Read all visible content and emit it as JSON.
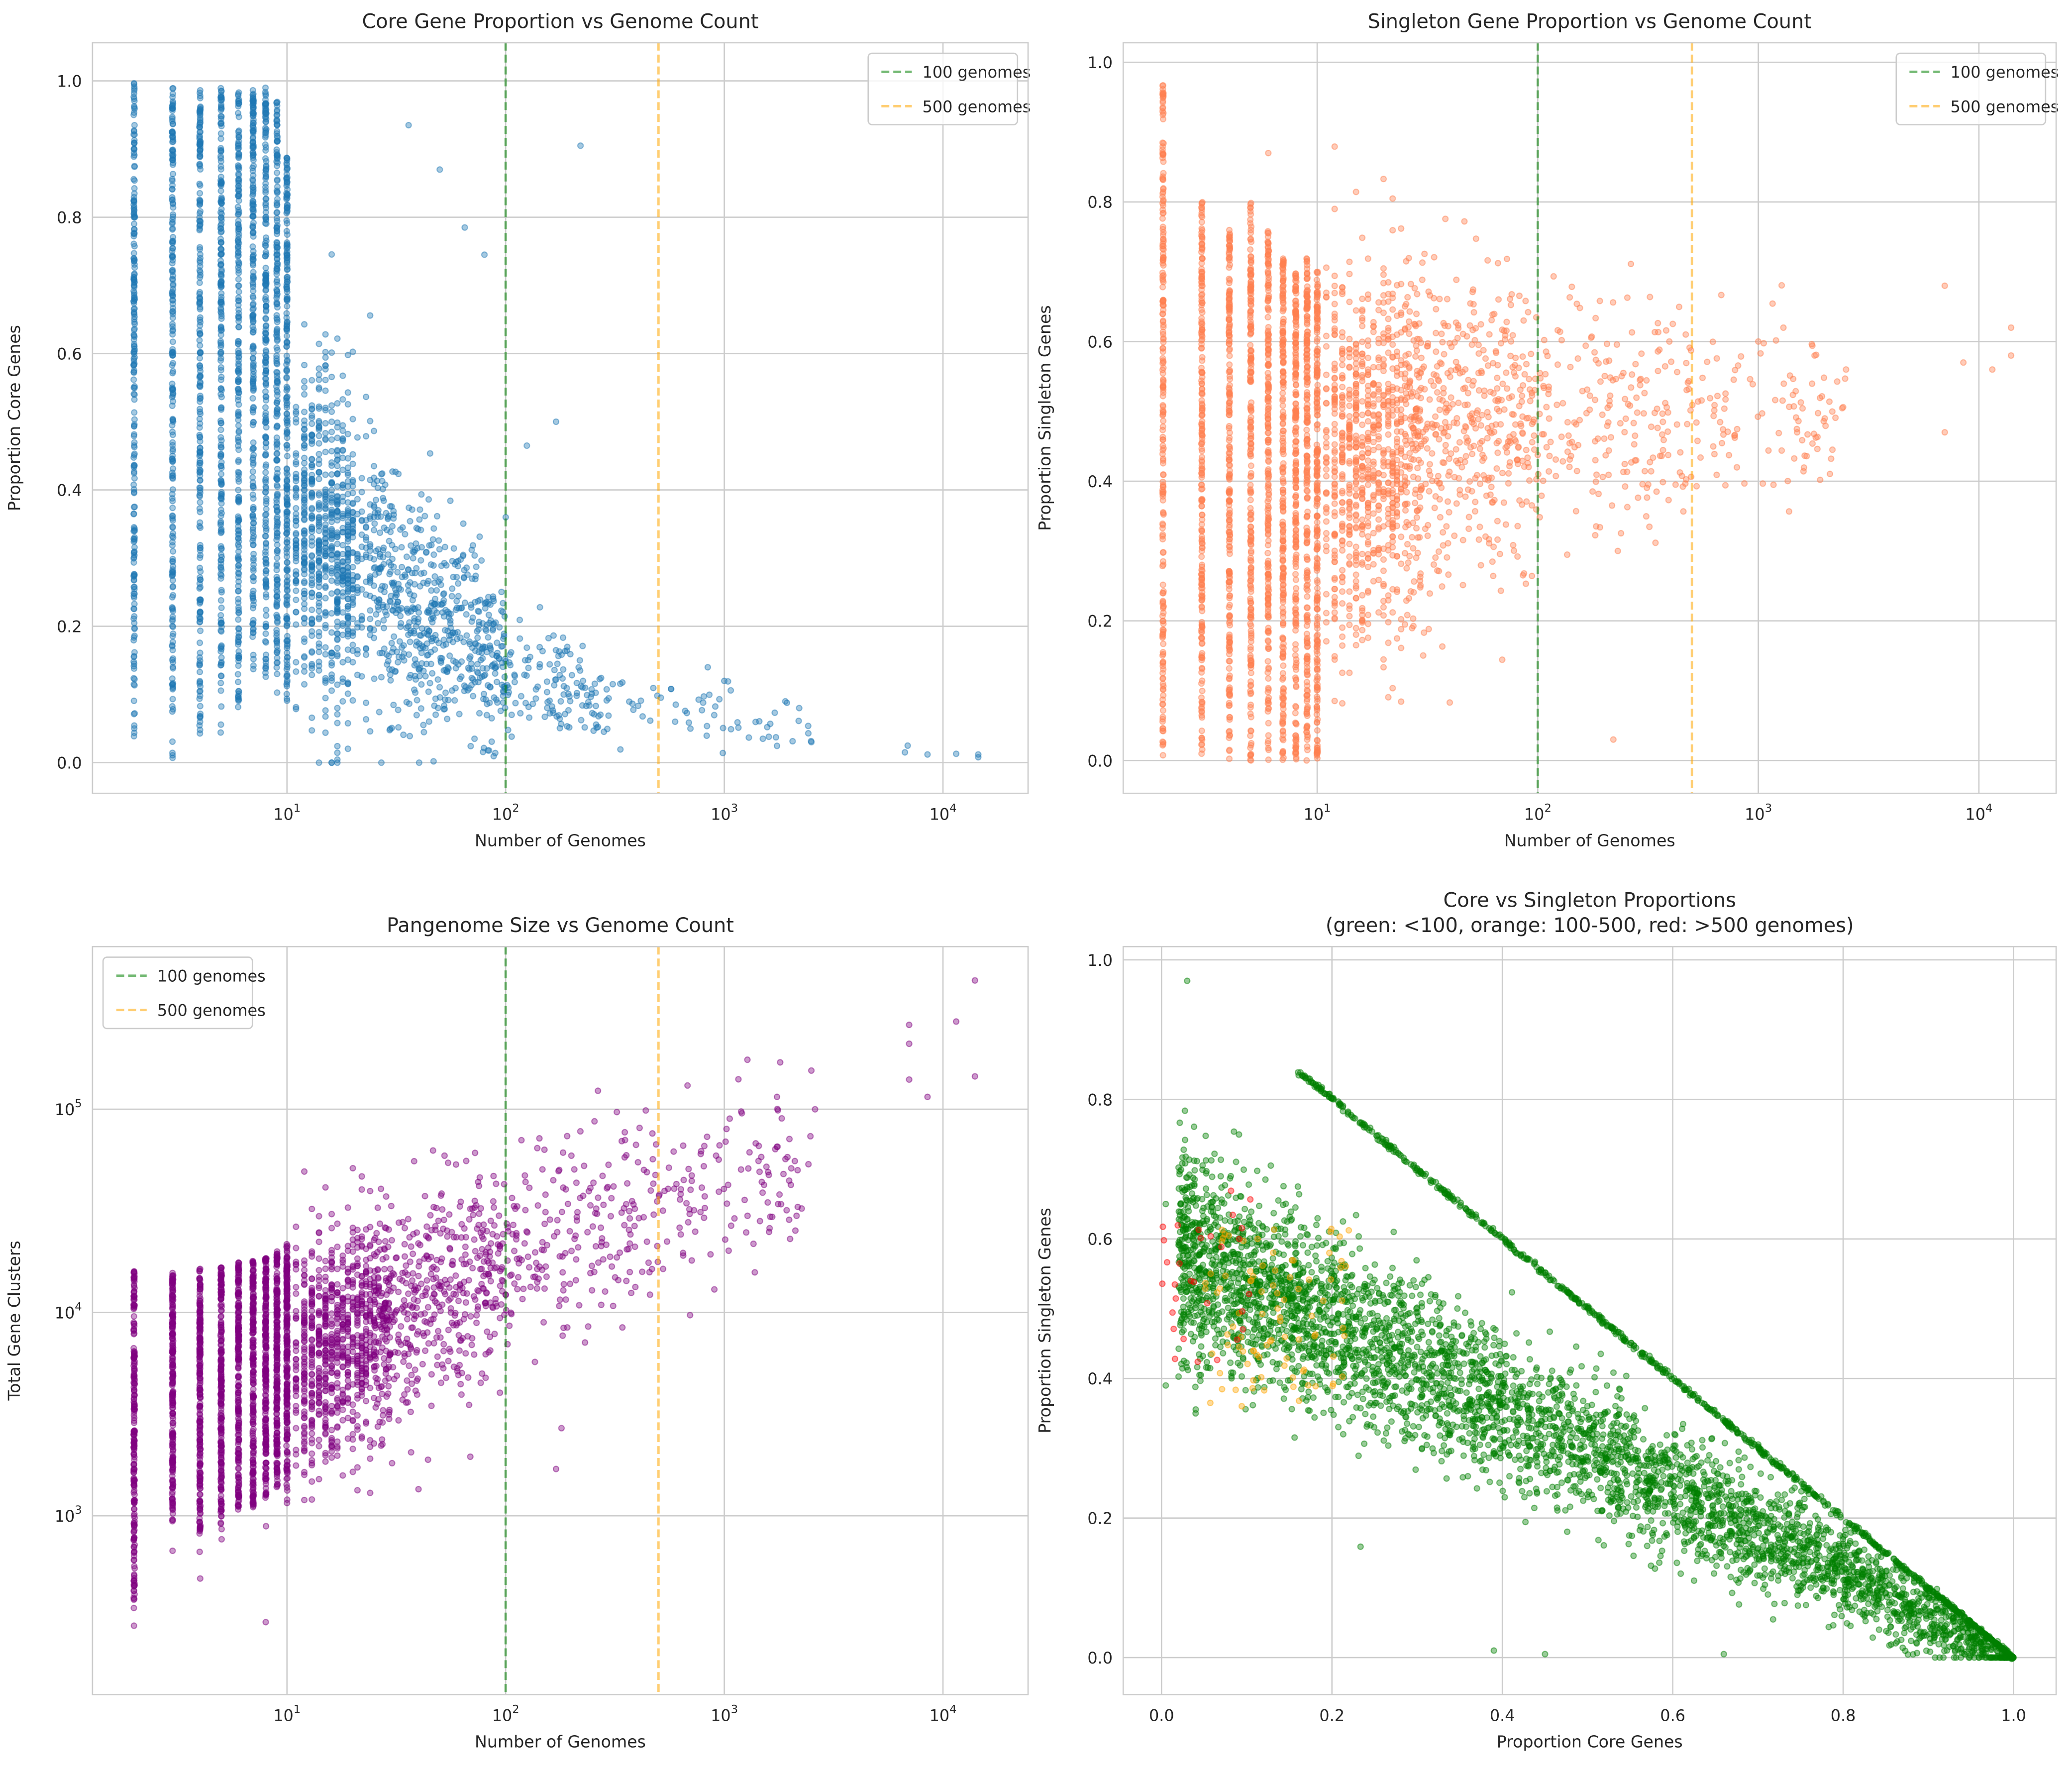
{
  "chart_data": [
    {
      "type": "scatter",
      "title": "Core Gene Proportion vs Genome Count",
      "xlabel": "Number of Genomes",
      "ylabel": "Proportion Core Genes",
      "xscale": "log",
      "yscale": "linear",
      "xlim": [
        1.29,
        24500
      ],
      "ylim": [
        -0.045,
        1.056
      ],
      "xticks": [
        10,
        100,
        1000,
        10000
      ],
      "xticklabels": [
        "10^1",
        "10^2",
        "10^3",
        "10^4"
      ],
      "yticks": [
        0,
        0.2,
        0.4,
        0.6,
        0.8,
        1.0
      ],
      "yticklabels": [
        "0.0",
        "0.2",
        "0.4",
        "0.6",
        "0.8",
        "1.0"
      ],
      "color": "#1f77b4",
      "alpha": 0.4,
      "vlines": [
        {
          "x": 100,
          "label": "100 genomes",
          "color": "#008000"
        },
        {
          "x": 500,
          "label": "500 genomes",
          "color": "#ffa500"
        }
      ],
      "legend": "upper right",
      "bands": [
        [
          2,
          0.03,
          1.0
        ],
        [
          3,
          0.005,
          1.0
        ],
        [
          4,
          0.04,
          0.99
        ],
        [
          5,
          0.04,
          0.99
        ],
        [
          6,
          0.08,
          0.99
        ],
        [
          7,
          0.13,
          0.99
        ],
        [
          8,
          0.12,
          0.99
        ],
        [
          9,
          0.1,
          0.97
        ],
        [
          10,
          0.08,
          0.89
        ]
      ],
      "cloud": {
        "count": 1500,
        "anchors": [
          [
            11,
            0.36,
            0.13,
            6
          ],
          [
            20,
            0.3,
            0.11,
            4
          ],
          [
            50,
            0.2,
            0.08,
            2.5
          ],
          [
            100,
            0.14,
            0.05,
            1.2
          ],
          [
            300,
            0.09,
            0.03,
            0.5
          ],
          [
            2500,
            0.05,
            0.02,
            0
          ]
        ]
      },
      "points": [
        [
          36,
          0.935
        ],
        [
          220,
          0.905
        ],
        [
          50,
          0.87
        ],
        [
          65,
          0.785
        ],
        [
          80,
          0.745
        ],
        [
          125,
          0.465
        ],
        [
          170,
          0.5
        ],
        [
          100,
          0.36
        ],
        [
          840,
          0.14
        ],
        [
          1000,
          0.12
        ],
        [
          1900,
          0.09
        ],
        [
          2200,
          0.08
        ],
        [
          2500,
          0.03
        ],
        [
          6700,
          0.015
        ],
        [
          6900,
          0.025
        ],
        [
          8500,
          0.012
        ],
        [
          11500,
          0.013
        ],
        [
          14500,
          0.012
        ],
        [
          14500,
          0.008
        ],
        [
          700,
          0.05
        ],
        [
          1500,
          0.035
        ],
        [
          600,
          0.085
        ]
      ]
    },
    {
      "type": "scatter",
      "title": "Singleton Gene Proportion vs Genome Count",
      "xlabel": "Number of Genomes",
      "ylabel": "Proportion Singleton Genes",
      "xscale": "log",
      "yscale": "linear",
      "xlim": [
        1.32,
        22400
      ],
      "ylim": [
        -0.047,
        1.028
      ],
      "xticks": [
        10,
        100,
        1000,
        10000
      ],
      "xticklabels": [
        "10^1",
        "10^2",
        "10^3",
        "10^4"
      ],
      "yticks": [
        0,
        0.2,
        0.4,
        0.6,
        0.8,
        1.0
      ],
      "yticklabels": [
        "0.0",
        "0.2",
        "0.4",
        "0.6",
        "0.8",
        "1.0"
      ],
      "color": "#ff7f50",
      "alpha": 0.4,
      "vlines": [
        {
          "x": 100,
          "label": "100 genomes",
          "color": "#008000"
        },
        {
          "x": 500,
          "label": "500 genomes",
          "color": "#ffa500"
        }
      ],
      "legend": "upper right",
      "bands": [
        [
          2,
          0.0,
          0.97
        ],
        [
          3,
          0.0,
          0.8
        ],
        [
          4,
          0.0,
          0.77
        ],
        [
          5,
          0.0,
          0.8
        ],
        [
          6,
          0.0,
          0.76
        ],
        [
          7,
          0.0,
          0.72
        ],
        [
          8,
          0.0,
          0.7
        ],
        [
          9,
          0.0,
          0.72
        ],
        [
          10,
          0.0,
          0.7
        ]
      ],
      "cloud": {
        "count": 1600,
        "anchors": [
          [
            11,
            0.42,
            0.14,
            6
          ],
          [
            30,
            0.46,
            0.12,
            3
          ],
          [
            100,
            0.48,
            0.09,
            1.5
          ],
          [
            500,
            0.5,
            0.07,
            0.6
          ],
          [
            2500,
            0.52,
            0.06,
            0
          ]
        ]
      },
      "points": [
        [
          6,
          0.87
        ],
        [
          12,
          0.79
        ],
        [
          220,
          0.03
        ],
        [
          1000,
          0.6
        ],
        [
          1300,
          0.62
        ],
        [
          1800,
          0.58
        ],
        [
          2000,
          0.49
        ],
        [
          2500,
          0.56
        ],
        [
          7000,
          0.68
        ],
        [
          7000,
          0.47
        ],
        [
          8500,
          0.57
        ],
        [
          11500,
          0.56
        ],
        [
          14000,
          0.62
        ],
        [
          14000,
          0.58
        ],
        [
          800,
          0.42
        ],
        [
          1500,
          0.47
        ]
      ]
    },
    {
      "type": "scatter",
      "title": "Pangenome Size vs Genome Count",
      "xlabel": "Number of Genomes",
      "ylabel": "Total Gene Clusters",
      "xscale": "log",
      "yscale": "log",
      "xlim": [
        1.29,
        24500
      ],
      "ylim": [
        132,
        631000
      ],
      "xticks": [
        10,
        100,
        1000,
        10000
      ],
      "xticklabels": [
        "10^1",
        "10^2",
        "10^3",
        "10^4"
      ],
      "yticks": [
        1000,
        10000,
        100000
      ],
      "yticklabels": [
        "10^3",
        "10^4",
        "10^5"
      ],
      "color": "#800080",
      "alpha": 0.4,
      "vlines": [
        {
          "x": 100,
          "label": "100 genomes",
          "color": "#008000"
        },
        {
          "x": 500,
          "label": "500 genomes",
          "color": "#ffa500"
        }
      ],
      "legend": "upper left",
      "bands": [
        [
          2,
          200,
          16000
        ],
        [
          3,
          560,
          16000
        ],
        [
          4,
          480,
          16500
        ],
        [
          5,
          600,
          17000
        ],
        [
          6,
          650,
          18000
        ],
        [
          7,
          700,
          18000
        ],
        [
          8,
          750,
          18500
        ],
        [
          9,
          800,
          20000
        ],
        [
          10,
          900,
          22000
        ]
      ],
      "cloud": {
        "count": 1600,
        "anchors": [
          [
            11,
            5500,
            0.28,
            6
          ],
          [
            30,
            9000,
            0.27,
            3
          ],
          [
            100,
            16000,
            0.25,
            1.5
          ],
          [
            500,
            35000,
            0.22,
            0.6
          ],
          [
            2500,
            60000,
            0.2,
            0
          ]
        ]
      },
      "points": [
        [
          8,
          300
        ],
        [
          170,
          1700
        ],
        [
          180,
          2700
        ],
        [
          1800,
          170000
        ],
        [
          2500,
          155000
        ],
        [
          2600,
          100000
        ],
        [
          2000,
          23000
        ],
        [
          900,
          13000
        ],
        [
          7000,
          260000
        ],
        [
          7000,
          210000
        ],
        [
          7000,
          140000
        ],
        [
          8500,
          115000
        ],
        [
          11500,
          270000
        ],
        [
          14000,
          430000
        ],
        [
          14000,
          145000
        ]
      ]
    },
    {
      "type": "scatter",
      "title": "Core vs Singleton Proportions\n(green: <100, orange: 100-500, red: >500 genomes)",
      "xlabel": "Proportion Core Genes",
      "ylabel": "Proportion Singleton Genes",
      "xscale": "linear",
      "yscale": "linear",
      "xlim": [
        -0.045,
        1.05
      ],
      "ylim": [
        -0.053,
        1.019
      ],
      "xticks": [
        0,
        0.2,
        0.4,
        0.6,
        0.8,
        1.0
      ],
      "xticklabels": [
        "0.0",
        "0.2",
        "0.4",
        "0.6",
        "0.8",
        "1.0"
      ],
      "yticks": [
        0,
        0.2,
        0.4,
        0.6,
        0.8,
        1.0
      ],
      "yticklabels": [
        "0.0",
        "0.2",
        "0.4",
        "0.6",
        "0.8",
        "1.0"
      ],
      "alpha": 0.4,
      "series": [
        {
          "name": "<100 genomes",
          "color": "#008000",
          "diagonal": [
            0.16,
            1.0,
            700
          ],
          "cloud": {
            "count": 4200,
            "slope": 0.6,
            "sd": 0.075,
            "xrange": [
              0.02,
              1.0
            ]
          }
        },
        {
          "name": "100-500 genomes",
          "color": "#ffa500",
          "box": {
            "count": 90,
            "x": [
              0.05,
              0.22
            ],
            "y": [
              0.35,
              0.62
            ]
          }
        },
        {
          "name": ">500 genomes",
          "color": "#ff0000",
          "box": {
            "count": 30,
            "x": [
              0.0,
              0.11
            ],
            "y": [
              0.42,
              0.68
            ]
          }
        }
      ],
      "points": [
        [
          0.03,
          0.97
        ],
        [
          0.005,
          0.65
        ],
        [
          0.005,
          0.39
        ],
        [
          0.04,
          0.35
        ],
        [
          0.45,
          0.005
        ],
        [
          0.39,
          0.01
        ],
        [
          0.66,
          0.005
        ]
      ]
    }
  ]
}
